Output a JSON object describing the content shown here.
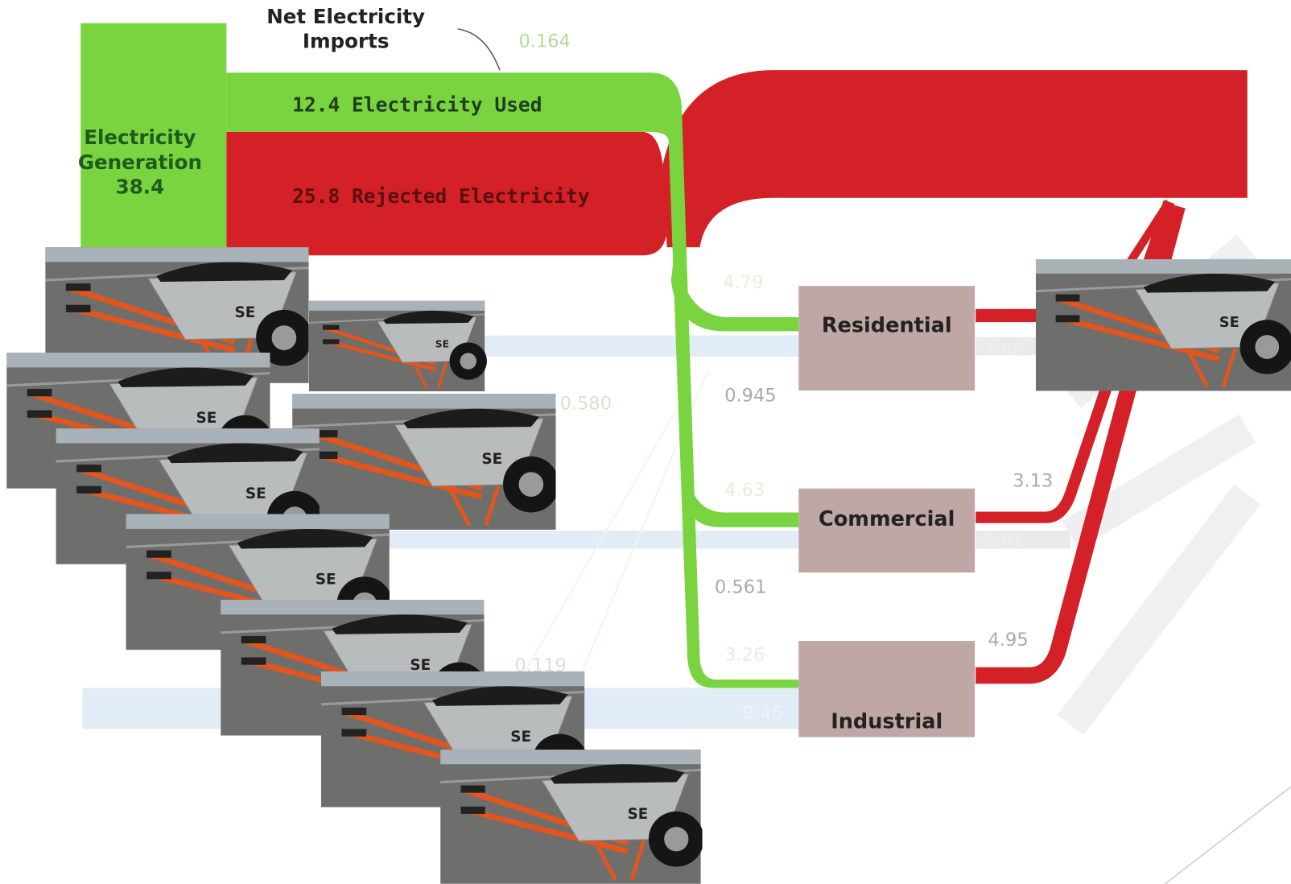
{
  "generation": {
    "lines": [
      "Electricity",
      "Generation",
      "38.4"
    ]
  },
  "imports": {
    "lines": [
      "Net Electricity",
      "Imports"
    ],
    "value": "0.164"
  },
  "flows": {
    "used": "12.4 Electricity Used",
    "rejected": "25.8 Rejected Electricity"
  },
  "sectors": [
    {
      "name": "Residential",
      "in": "4.79",
      "out": "7.66"
    },
    {
      "name": "Commercial",
      "in": "4.63",
      "out": "5.81",
      "rejected": "3.13"
    },
    {
      "name": "Industrial",
      "in": "3.26",
      "out": "9.46",
      "rejected": "4.95"
    }
  ],
  "faint_values": [
    "0.945",
    "0.580",
    "0.561",
    "0.119"
  ]
}
